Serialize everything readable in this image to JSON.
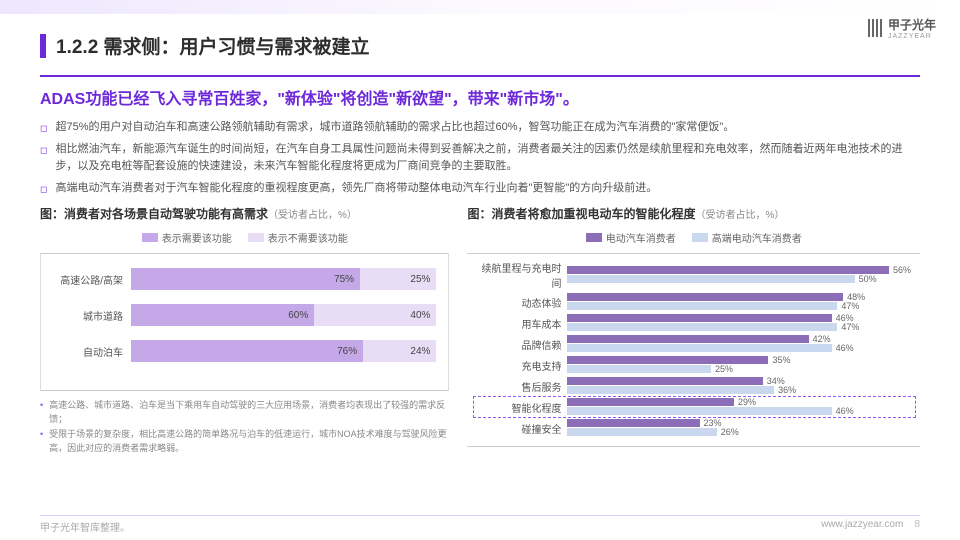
{
  "logo_text": "甲子光年",
  "logo_sub": "JAZZYEAR",
  "header": {
    "section_no": "1.2.2",
    "title": "需求侧：用户习惯与需求被建立",
    "subtitle": "ADAS功能已经飞入寻常百姓家，\"新体验\"将创造\"新欲望\"，带来\"新市场\"。"
  },
  "bullets": [
    "超75%的用户对自动泊车和高速公路领航辅助有需求，城市道路领航辅助的需求占比也超过60%，智驾功能正在成为汽车消费的\"家常便饭\"。",
    "相比燃油汽车，新能源汽车诞生的时间尚短，在汽车自身工具属性问题尚未得到妥善解决之前，消费者最关注的因素仍然是续航里程和充电效率，然而随着近两年电池技术的进步，以及充电桩等配套设施的快速建设，未来汽车智能化程度将更成为厂商间竞争的主要取胜。",
    "高端电动汽车消费者对于汽车智能化程度的重视程度更高，领先厂商将带动整体电动汽车行业向着\"更智能\"的方向升级前进。"
  ],
  "chart1": {
    "title": "图：消费者对各场景自动驾驶功能有高需求",
    "suffix": "（受访者占比，%）",
    "legend": [
      {
        "label": "表示需要该功能",
        "color": "#c4a8e8"
      },
      {
        "label": "表示不需要该功能",
        "color": "#e8ddf5"
      }
    ],
    "rows": [
      {
        "label": "高速公路/高架",
        "a": 75,
        "b": 25,
        "a_label": "75%",
        "b_label": "25%"
      },
      {
        "label": "城市道路",
        "a": 60,
        "b": 40,
        "a_label": "60%",
        "b_label": "40%"
      },
      {
        "label": "自动泊车",
        "a": 76,
        "b": 24,
        "a_label": "76%",
        "b_label": "24%"
      }
    ],
    "colors": {
      "a": "#c4a8e8",
      "b": "#e8ddf5"
    },
    "notes": [
      "高速公路、城市道路、泊车是当下乘用车自动驾驶的三大应用场景，消费者均表现出了较强的需求反馈；",
      "受限于场景的复杂度，相比高速公路的简单路况与泊车的低速运行，城市NOA技术难度与驾驶风险更高，因此对应的消费者需求略弱。"
    ]
  },
  "chart2": {
    "title": "图：消费者将愈加重视电动车的智能化程度",
    "suffix": "（受访者占比，%）",
    "legend": [
      {
        "label": "电动汽车消费者",
        "color": "#8b6db8"
      },
      {
        "label": "高端电动汽车消费者",
        "color": "#c9d8ef"
      }
    ],
    "max": 60,
    "rows": [
      {
        "label": "续航里程与充电时间",
        "a": 56,
        "b": 50
      },
      {
        "label": "动态体验",
        "a": 48,
        "b": 47
      },
      {
        "label": "用车成本",
        "a": 46,
        "b": 47
      },
      {
        "label": "品牌信赖",
        "a": 42,
        "b": 46
      },
      {
        "label": "充电支持",
        "a": 35,
        "b": 25
      },
      {
        "label": "售后服务",
        "a": 34,
        "b": 36
      },
      {
        "label": "智能化程度",
        "a": 29,
        "b": 46,
        "highlight": true
      },
      {
        "label": "碰撞安全",
        "a": 23,
        "b": 26
      }
    ],
    "colors": {
      "a": "#8b6db8",
      "b": "#c9d8ef"
    }
  },
  "footer": {
    "source": "甲子光年智库整理。",
    "url": "www.jazzyear.com",
    "page": "8"
  }
}
